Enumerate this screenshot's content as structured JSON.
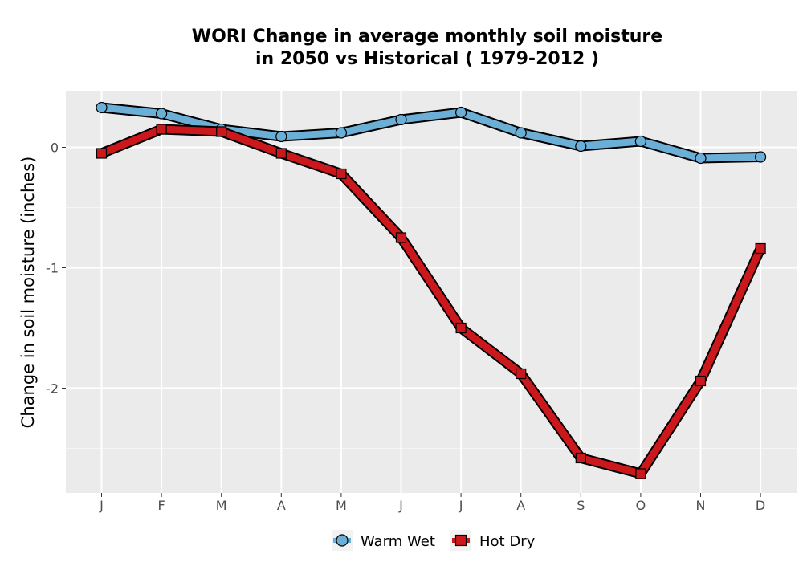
{
  "chart_data": {
    "type": "line",
    "title_lines": [
      "WORI  Change in average monthly soil moisture",
      "in 2050 vs Historical ( 1979-2012 )"
    ],
    "xlabel": "",
    "ylabel": "Change in soil moisture (inches)",
    "categories": [
      "J",
      "F",
      "M",
      "A",
      "M",
      "J",
      "J",
      "A",
      "S",
      "O",
      "N",
      "D"
    ],
    "yticks": [
      0,
      -1,
      -2
    ],
    "ytick_labels": [
      "0",
      "-1",
      "-2"
    ],
    "ylim": [
      -2.87,
      0.47
    ],
    "grid": true,
    "legend_position": "bottom",
    "series": [
      {
        "name": "Warm Wet",
        "color": "#6baed6",
        "marker": "circle",
        "values": [
          0.33,
          0.28,
          0.15,
          0.09,
          0.12,
          0.23,
          0.29,
          0.12,
          0.01,
          0.05,
          -0.09,
          -0.08
        ]
      },
      {
        "name": "Hot Dry",
        "color": "#cb181d",
        "marker": "square",
        "values": [
          -0.05,
          0.15,
          0.13,
          -0.05,
          -0.22,
          -0.75,
          -1.5,
          -1.88,
          -2.58,
          -2.71,
          -1.94,
          -0.84
        ]
      }
    ]
  }
}
